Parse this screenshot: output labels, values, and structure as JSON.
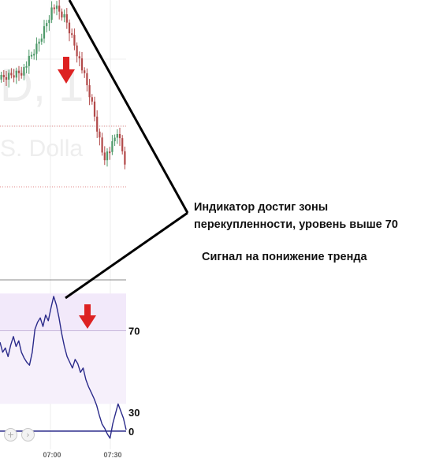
{
  "watermark": {
    "symbol_fragment": "D, 1",
    "name_fragment": "S. Dolla"
  },
  "annotation": {
    "line1": "Индикатор достиг зоны",
    "line2": "перекупленности, уровень выше 70",
    "signal": "Сигнал на понижение тренда"
  },
  "navigation": {
    "zoom_in": "+",
    "next": "›"
  },
  "colors": {
    "bull_candle": "#4e9a6a",
    "bear_candle": "#b24a4a",
    "oscillator_line": "#2a2a8a",
    "overbought_zone": "#f2e9fa",
    "arrow": "#dd2222",
    "annotation_line": "#000000",
    "dotted_level": "#e08a8a"
  },
  "chart_data": [
    {
      "type": "candlestick",
      "title": "",
      "xlabel": "",
      "ylabel": "",
      "x_ticks": [
        "07:00",
        "07:30"
      ],
      "candle_count": 50,
      "bullish_fraction": 0.45,
      "trend": "rise to peak near 07:00, then decline",
      "marker": "red down arrow after peak"
    },
    {
      "type": "line",
      "title": "",
      "xlabel": "",
      "ylabel": "",
      "levels": [
        70,
        0,
        30
      ],
      "x_ticks": [
        "07:00",
        "07:30"
      ],
      "zone": "overbought band above 70",
      "series": [
        {
          "values": [
            62,
            55,
            58,
            52,
            60,
            66,
            59,
            63,
            55,
            51,
            48,
            46,
            55,
            71,
            76,
            79,
            73,
            81,
            77,
            86,
            94,
            88,
            79,
            68,
            59,
            52,
            48,
            44,
            50,
            47,
            41,
            44,
            36,
            31,
            27,
            23,
            18,
            11,
            5,
            2,
            -2,
            -5,
            5,
            12,
            19,
            14,
            9,
            1
          ]
        }
      ]
    }
  ]
}
